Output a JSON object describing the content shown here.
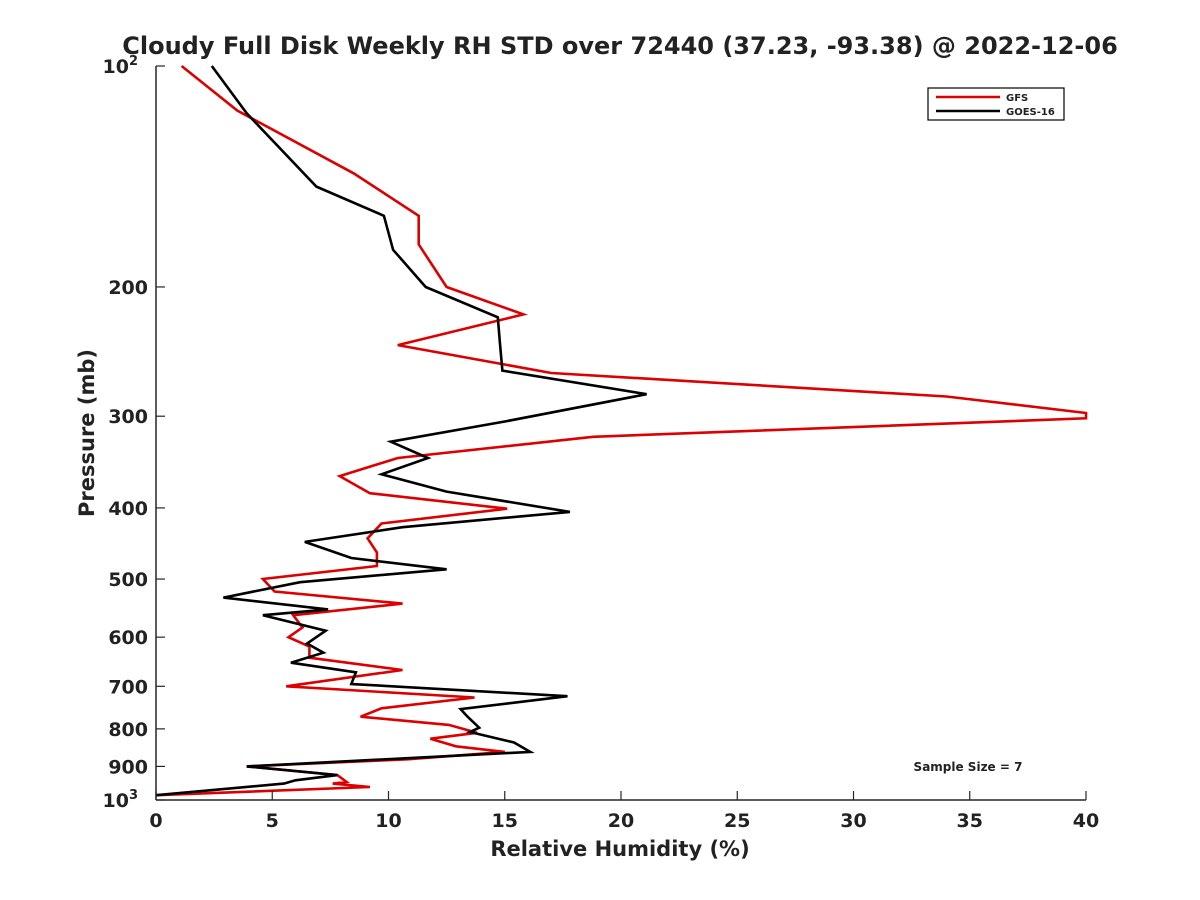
{
  "chart_data": {
    "type": "line",
    "title": "Cloudy Full Disk Weekly RH STD over 72440 (37.23, -93.38) @ 2022-12-06",
    "xlabel": "Relative Humidity (%)",
    "ylabel": "Pressure (mb)",
    "xlim": [
      0,
      40
    ],
    "ylim": [
      100,
      1000
    ],
    "y_scale": "log",
    "y_reversed": true,
    "grid": false,
    "legend_position": "top-right",
    "x_ticks": [
      "0",
      "5",
      "10",
      "15",
      "20",
      "25",
      "30",
      "35",
      "40"
    ],
    "y_ticks": [
      {
        "value": 100,
        "base": "10",
        "exp": "2"
      },
      {
        "value": 200,
        "label": "200"
      },
      {
        "value": 300,
        "label": "300"
      },
      {
        "value": 400,
        "label": "400"
      },
      {
        "value": 500,
        "label": "500"
      },
      {
        "value": 600,
        "label": "600"
      },
      {
        "value": 700,
        "label": "700"
      },
      {
        "value": 800,
        "label": "800"
      },
      {
        "value": 900,
        "label": "900"
      },
      {
        "value": 1000,
        "base": "10",
        "exp": "3"
      }
    ],
    "annotation": "Sample Size = 7",
    "series": [
      {
        "name": "GFS",
        "color": "#dd0000",
        "points": [
          [
            1.1,
            100
          ],
          [
            3.5,
            115
          ],
          [
            8.5,
            140
          ],
          [
            11.3,
            160
          ],
          [
            11.3,
            175
          ],
          [
            12.5,
            200
          ],
          [
            15.8,
            218
          ],
          [
            10.4,
            240
          ],
          [
            17,
            262
          ],
          [
            34,
            282
          ],
          [
            40,
            297
          ],
          [
            40,
            302
          ],
          [
            18.8,
            320
          ],
          [
            10.4,
            342
          ],
          [
            7.9,
            362
          ],
          [
            9.2,
            382
          ],
          [
            15.1,
            401
          ],
          [
            9.7,
            420
          ],
          [
            9.1,
            440
          ],
          [
            9.5,
            460
          ],
          [
            9.5,
            480
          ],
          [
            4.6,
            500
          ],
          [
            5.1,
            520
          ],
          [
            10.6,
            540
          ],
          [
            5.9,
            560
          ],
          [
            6.3,
            582
          ],
          [
            5.7,
            600
          ],
          [
            6.6,
            618
          ],
          [
            6.6,
            640
          ],
          [
            10.6,
            665
          ],
          [
            5.6,
            700
          ],
          [
            13.7,
            725
          ],
          [
            9.7,
            750
          ],
          [
            8.8,
            770
          ],
          [
            12.6,
            790
          ],
          [
            13.8,
            810
          ],
          [
            11.8,
            825
          ],
          [
            12.9,
            845
          ],
          [
            15,
            860
          ],
          [
            10.8,
            880
          ],
          [
            3.9,
            900
          ],
          [
            7.8,
            925
          ],
          [
            8.2,
            945
          ],
          [
            7.6,
            950
          ],
          [
            9.2,
            960
          ],
          [
            0,
            985
          ]
        ]
      },
      {
        "name": "GOES-16",
        "color": "#000000",
        "points": [
          [
            2.4,
            100
          ],
          [
            3.9,
            116
          ],
          [
            6.9,
            146
          ],
          [
            9.8,
            160
          ],
          [
            10.2,
            178
          ],
          [
            11.6,
            200
          ],
          [
            14.7,
            220
          ],
          [
            14.8,
            240
          ],
          [
            14.9,
            260
          ],
          [
            21.1,
            280
          ],
          [
            15,
            305
          ],
          [
            10.1,
            325
          ],
          [
            11.7,
            342
          ],
          [
            9.7,
            360
          ],
          [
            12.5,
            380
          ],
          [
            17.8,
            405
          ],
          [
            10.6,
            425
          ],
          [
            6.4,
            445
          ],
          [
            8.4,
            468
          ],
          [
            12.5,
            485
          ],
          [
            6.2,
            505
          ],
          [
            2.9,
            530
          ],
          [
            7.4,
            550
          ],
          [
            4.6,
            560
          ],
          [
            7.3,
            588
          ],
          [
            6.5,
            612
          ],
          [
            7.2,
            630
          ],
          [
            5.8,
            650
          ],
          [
            8.6,
            670
          ],
          [
            8.4,
            695
          ],
          [
            17.7,
            722
          ],
          [
            13.1,
            752
          ],
          [
            13.4,
            770
          ],
          [
            13.9,
            797
          ],
          [
            13.5,
            808
          ],
          [
            15.4,
            835
          ],
          [
            16.1,
            860
          ],
          [
            3.9,
            900
          ],
          [
            7.8,
            925
          ],
          [
            6,
            940
          ],
          [
            5.5,
            950
          ],
          [
            0,
            985
          ]
        ]
      }
    ]
  }
}
